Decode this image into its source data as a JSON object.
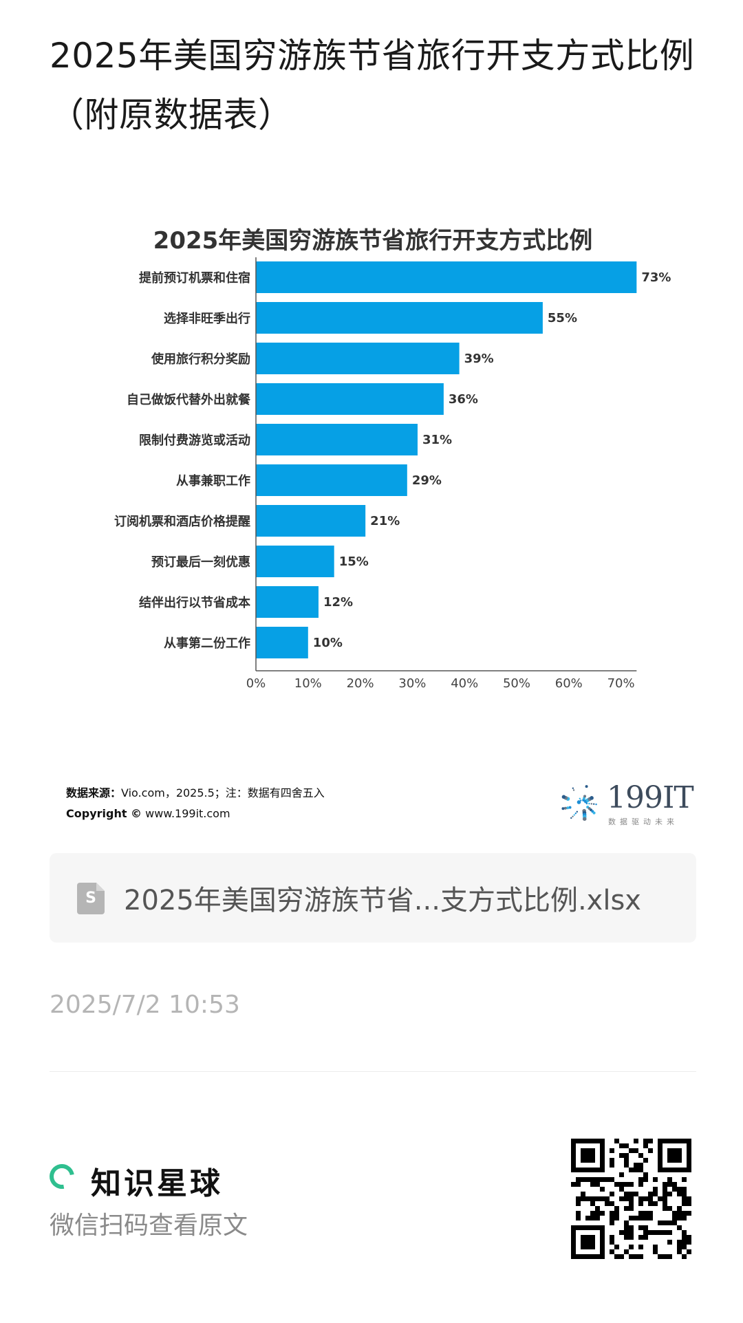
{
  "page": {
    "title": "2025年美国穷游族节省旅行开支方式比例（附原数据表）"
  },
  "chart_data": {
    "type": "bar",
    "orientation": "horizontal",
    "title": "2025年美国穷游族节省旅行开支方式比例",
    "categories": [
      "提前预订机票和住宿",
      "选择非旺季出行",
      "使用旅行积分奖励",
      "自己做饭代替外出就餐",
      "限制付费游览或活动",
      "从事兼职工作",
      "订阅机票和酒店价格提醒",
      "预订最后一刻优惠",
      "结伴出行以节省成本",
      "从事第二份工作"
    ],
    "values": [
      73,
      55,
      39,
      36,
      31,
      29,
      21,
      15,
      12,
      10
    ],
    "value_labels": [
      "73%",
      "55%",
      "39%",
      "36%",
      "31%",
      "29%",
      "21%",
      "15%",
      "12%",
      "10%"
    ],
    "xlim": [
      0,
      73
    ],
    "xticks": [
      "0%",
      "10%",
      "20%",
      "30%",
      "40%",
      "50%",
      "60%",
      "70%"
    ],
    "xtick_values": [
      0,
      10,
      20,
      30,
      40,
      50,
      60,
      70
    ],
    "bar_color": "#06a0e5",
    "grid": false
  },
  "source": {
    "label": "数据来源：",
    "text": "Vio.com，2025.5；注：数据有四舍五入",
    "copyright_label": "Copyright ©",
    "copyright_text": "www.199it.com"
  },
  "logo": {
    "name": "199IT",
    "tagline": "数据驱动未来"
  },
  "file_card": {
    "icon": "spreadsheet-icon",
    "icon_letter": "S",
    "filename": "2025年美国穷游族节省...支方式比例.xlsx"
  },
  "timestamp": "2025/7/2 10:53",
  "footer": {
    "brand_name": "知识星球",
    "scan_text": "微信扫码查看原文",
    "brand_color": "#2fbf8f"
  }
}
